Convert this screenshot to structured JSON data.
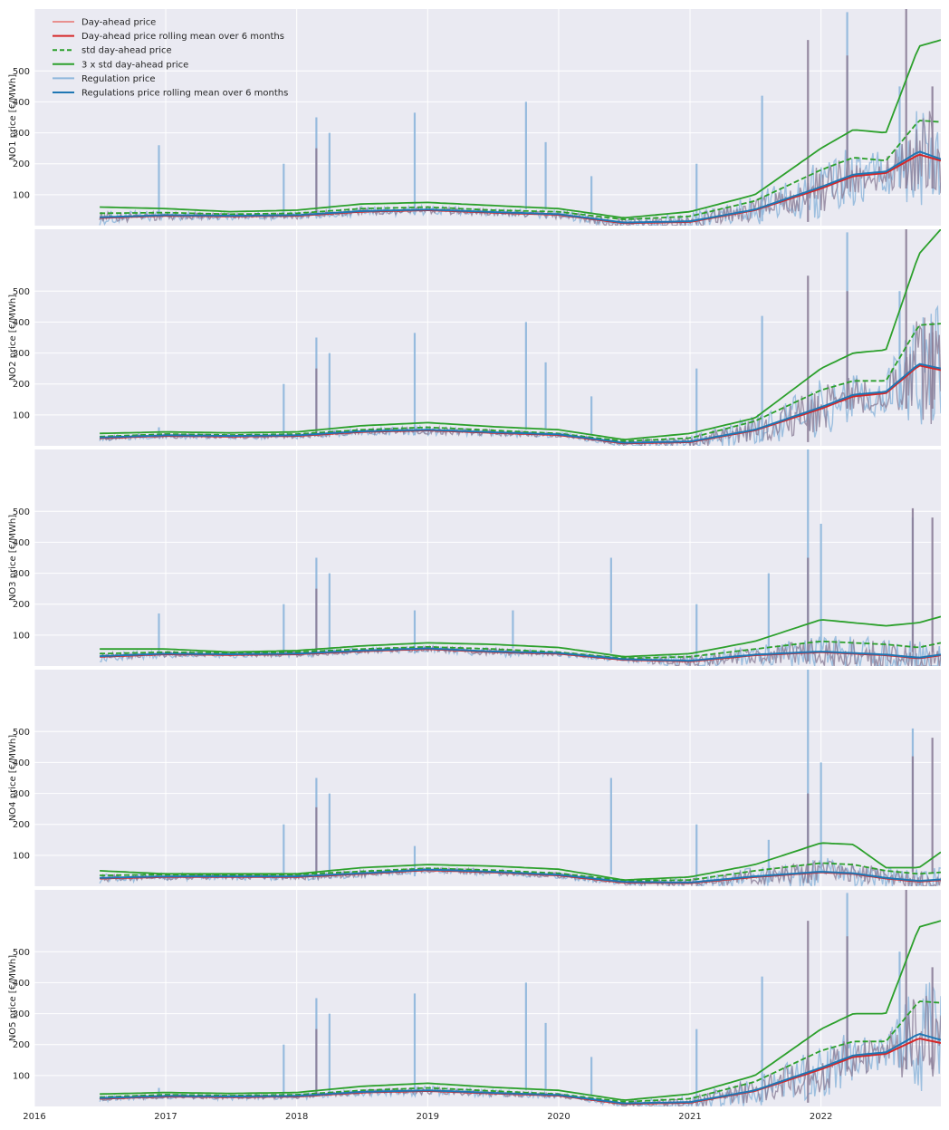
{
  "chart_data": {
    "type": "line",
    "x_range": [
      "2016-01-01",
      "2022-12-01"
    ],
    "x_ticks": [
      "2016",
      "2017",
      "2018",
      "2019",
      "2020",
      "2021",
      "2022"
    ],
    "y_ticks": [
      100,
      200,
      300,
      400,
      500
    ],
    "grid": true,
    "legend_position": "top-left",
    "legend": [
      {
        "label": "Day-ahead price",
        "color": "#e8908f",
        "style": "solid"
      },
      {
        "label": "Day-ahead price rolling mean over 6 months",
        "color": "#d62728",
        "style": "solid"
      },
      {
        "label": "std day-ahead price",
        "color": "#2ca02c",
        "style": "dashed"
      },
      {
        "label": "3 x std day-ahead price",
        "color": "#2ca02c",
        "style": "solid"
      },
      {
        "label": "Regulation price",
        "color": "#8fb7dc",
        "style": "solid"
      },
      {
        "label": "Regulations price rolling mean over 6 months",
        "color": "#1f77b4",
        "style": "solid"
      }
    ],
    "panels": [
      {
        "ylabel": "NO1 price [€/MWh]",
        "ylim": [
          0,
          700
        ],
        "x": [
          "2016-07-01",
          "2017-01-01",
          "2017-07-01",
          "2018-01-01",
          "2018-07-01",
          "2019-01-01",
          "2019-07-01",
          "2020-01-01",
          "2020-07-01",
          "2021-01-01",
          "2021-07-01",
          "2022-01-01",
          "2022-04-01",
          "2022-07-01",
          "2022-10-01",
          "2022-12-01"
        ],
        "rolling_dayahead": [
          25,
          32,
          30,
          32,
          45,
          50,
          42,
          35,
          8,
          12,
          50,
          120,
          160,
          170,
          230,
          210
        ],
        "rolling_regulation": [
          27,
          34,
          32,
          34,
          47,
          52,
          44,
          37,
          10,
          14,
          52,
          125,
          165,
          175,
          240,
          215
        ],
        "std": [
          40,
          42,
          37,
          40,
          55,
          60,
          50,
          45,
          20,
          30,
          80,
          180,
          220,
          210,
          340,
          335
        ],
        "std3": [
          60,
          55,
          45,
          50,
          70,
          75,
          65,
          55,
          25,
          45,
          100,
          250,
          310,
          300,
          580,
          600
        ],
        "dayahead_spikes": [
          [
            2018.15,
            250
          ],
          [
            2021.9,
            600
          ],
          [
            2022.2,
            550
          ],
          [
            2022.65,
            700
          ],
          [
            2022.85,
            450
          ]
        ],
        "regulation_spikes": [
          [
            2016.95,
            260
          ],
          [
            2017.9,
            200
          ],
          [
            2018.15,
            350
          ],
          [
            2018.25,
            300
          ],
          [
            2018.9,
            365
          ],
          [
            2019.75,
            400
          ],
          [
            2019.9,
            270
          ],
          [
            2020.25,
            160
          ],
          [
            2021.05,
            200
          ],
          [
            2021.55,
            420
          ],
          [
            2022.2,
            690
          ],
          [
            2022.6,
            450
          ]
        ]
      },
      {
        "ylabel": "NO2 price [€/MWh]",
        "ylim": [
          0,
          700
        ],
        "x": [
          "2016-07-01",
          "2017-01-01",
          "2017-07-01",
          "2018-01-01",
          "2018-07-01",
          "2019-01-01",
          "2019-07-01",
          "2020-01-01",
          "2020-07-01",
          "2021-01-01",
          "2021-07-01",
          "2022-01-01",
          "2022-04-01",
          "2022-07-01",
          "2022-10-01",
          "2022-12-01"
        ],
        "rolling_dayahead": [
          25,
          32,
          30,
          32,
          45,
          50,
          42,
          35,
          8,
          12,
          50,
          120,
          160,
          170,
          260,
          245
        ],
        "rolling_regulation": [
          27,
          34,
          32,
          34,
          47,
          52,
          44,
          37,
          10,
          14,
          52,
          125,
          165,
          175,
          265,
          250
        ],
        "std": [
          30,
          38,
          35,
          38,
          52,
          60,
          50,
          40,
          15,
          25,
          80,
          180,
          210,
          210,
          390,
          395
        ],
        "std3": [
          40,
          45,
          42,
          45,
          65,
          75,
          62,
          52,
          20,
          40,
          90,
          250,
          300,
          310,
          620,
          700
        ],
        "dayahead_spikes": [
          [
            2018.15,
            250
          ],
          [
            2021.9,
            550
          ],
          [
            2022.2,
            500
          ],
          [
            2022.65,
            700
          ],
          [
            2022.85,
            400
          ]
        ],
        "regulation_spikes": [
          [
            2016.95,
            60
          ],
          [
            2017.9,
            200
          ],
          [
            2018.15,
            350
          ],
          [
            2018.25,
            300
          ],
          [
            2018.9,
            365
          ],
          [
            2019.75,
            400
          ],
          [
            2019.9,
            270
          ],
          [
            2020.25,
            160
          ],
          [
            2021.05,
            250
          ],
          [
            2021.55,
            420
          ],
          [
            2022.2,
            690
          ],
          [
            2022.6,
            500
          ]
        ]
      },
      {
        "ylabel": "NO3 price [€/MWh]",
        "ylim": [
          0,
          700
        ],
        "x": [
          "2016-07-01",
          "2017-01-01",
          "2017-07-01",
          "2018-01-01",
          "2018-07-01",
          "2019-01-01",
          "2019-07-01",
          "2020-01-01",
          "2020-07-01",
          "2021-01-01",
          "2021-07-01",
          "2022-01-01",
          "2022-04-01",
          "2022-07-01",
          "2022-10-01",
          "2022-12-01"
        ],
        "rolling_dayahead": [
          30,
          38,
          36,
          38,
          48,
          55,
          45,
          40,
          20,
          15,
          35,
          45,
          40,
          35,
          25,
          35
        ],
        "rolling_regulation": [
          32,
          40,
          38,
          40,
          50,
          57,
          47,
          42,
          22,
          17,
          37,
          47,
          42,
          37,
          27,
          37
        ],
        "std": [
          40,
          45,
          42,
          45,
          55,
          62,
          55,
          45,
          25,
          30,
          55,
          80,
          75,
          70,
          60,
          75
        ],
        "std3": [
          55,
          55,
          45,
          50,
          65,
          75,
          70,
          60,
          30,
          40,
          80,
          150,
          140,
          130,
          140,
          160
        ],
        "dayahead_spikes": [
          [
            2018.15,
            250
          ],
          [
            2021.9,
            350
          ],
          [
            2022.7,
            510
          ],
          [
            2022.85,
            480
          ]
        ],
        "regulation_spikes": [
          [
            2016.95,
            170
          ],
          [
            2017.9,
            200
          ],
          [
            2018.15,
            350
          ],
          [
            2018.25,
            300
          ],
          [
            2018.9,
            180
          ],
          [
            2019.65,
            180
          ],
          [
            2020.4,
            350
          ],
          [
            2021.05,
            200
          ],
          [
            2021.6,
            300
          ],
          [
            2021.9,
            700
          ],
          [
            2022.0,
            460
          ],
          [
            2022.7,
            480
          ]
        ]
      },
      {
        "ylabel": "NO4 price [€/MWh]",
        "ylim": [
          0,
          700
        ],
        "x": [
          "2016-07-01",
          "2017-01-01",
          "2017-07-01",
          "2018-01-01",
          "2018-07-01",
          "2019-01-01",
          "2019-07-01",
          "2020-01-01",
          "2020-07-01",
          "2021-01-01",
          "2021-07-01",
          "2022-01-01",
          "2022-04-01",
          "2022-07-01",
          "2022-10-01",
          "2022-12-01"
        ],
        "rolling_dayahead": [
          25,
          30,
          30,
          30,
          40,
          52,
          45,
          35,
          12,
          10,
          30,
          45,
          40,
          25,
          15,
          20
        ],
        "rolling_regulation": [
          27,
          32,
          32,
          32,
          42,
          54,
          47,
          37,
          14,
          12,
          32,
          47,
          42,
          27,
          17,
          22
        ],
        "std": [
          35,
          38,
          36,
          38,
          48,
          58,
          52,
          42,
          18,
          20,
          50,
          75,
          70,
          50,
          40,
          45
        ],
        "std3": [
          50,
          40,
          40,
          40,
          60,
          70,
          65,
          55,
          20,
          30,
          70,
          140,
          135,
          60,
          60,
          110
        ],
        "dayahead_spikes": [
          [
            2018.15,
            255
          ],
          [
            2021.9,
            300
          ],
          [
            2022.7,
            420
          ],
          [
            2022.85,
            480
          ]
        ],
        "regulation_spikes": [
          [
            2017.9,
            200
          ],
          [
            2018.15,
            350
          ],
          [
            2018.25,
            300
          ],
          [
            2018.9,
            130
          ],
          [
            2020.4,
            350
          ],
          [
            2021.05,
            200
          ],
          [
            2021.6,
            150
          ],
          [
            2021.9,
            700
          ],
          [
            2022.0,
            400
          ],
          [
            2022.7,
            510
          ]
        ]
      },
      {
        "ylabel": "NO5 price [€/MWh]",
        "ylim": [
          0,
          700
        ],
        "x": [
          "2016-07-01",
          "2017-01-01",
          "2017-07-01",
          "2018-01-01",
          "2018-07-01",
          "2019-01-01",
          "2019-07-01",
          "2020-01-01",
          "2020-07-01",
          "2021-01-01",
          "2021-07-01",
          "2022-01-01",
          "2022-04-01",
          "2022-07-01",
          "2022-10-01",
          "2022-12-01"
        ],
        "rolling_dayahead": [
          25,
          32,
          30,
          32,
          45,
          50,
          42,
          35,
          8,
          12,
          50,
          120,
          160,
          170,
          220,
          205
        ],
        "rolling_regulation": [
          27,
          34,
          32,
          34,
          47,
          52,
          44,
          37,
          10,
          14,
          52,
          125,
          165,
          175,
          235,
          215
        ],
        "std": [
          30,
          38,
          35,
          38,
          52,
          60,
          50,
          40,
          15,
          25,
          80,
          180,
          210,
          210,
          340,
          335
        ],
        "std3": [
          40,
          45,
          42,
          45,
          65,
          75,
          62,
          52,
          20,
          40,
          100,
          250,
          300,
          300,
          580,
          600
        ],
        "dayahead_spikes": [
          [
            2018.15,
            250
          ],
          [
            2021.9,
            600
          ],
          [
            2022.2,
            550
          ],
          [
            2022.65,
            700
          ],
          [
            2022.85,
            450
          ]
        ],
        "regulation_spikes": [
          [
            2016.95,
            60
          ],
          [
            2017.9,
            200
          ],
          [
            2018.15,
            350
          ],
          [
            2018.25,
            300
          ],
          [
            2018.9,
            365
          ],
          [
            2019.75,
            400
          ],
          [
            2019.9,
            270
          ],
          [
            2020.25,
            160
          ],
          [
            2021.05,
            250
          ],
          [
            2021.55,
            420
          ],
          [
            2022.2,
            690
          ],
          [
            2022.6,
            500
          ]
        ]
      }
    ]
  }
}
